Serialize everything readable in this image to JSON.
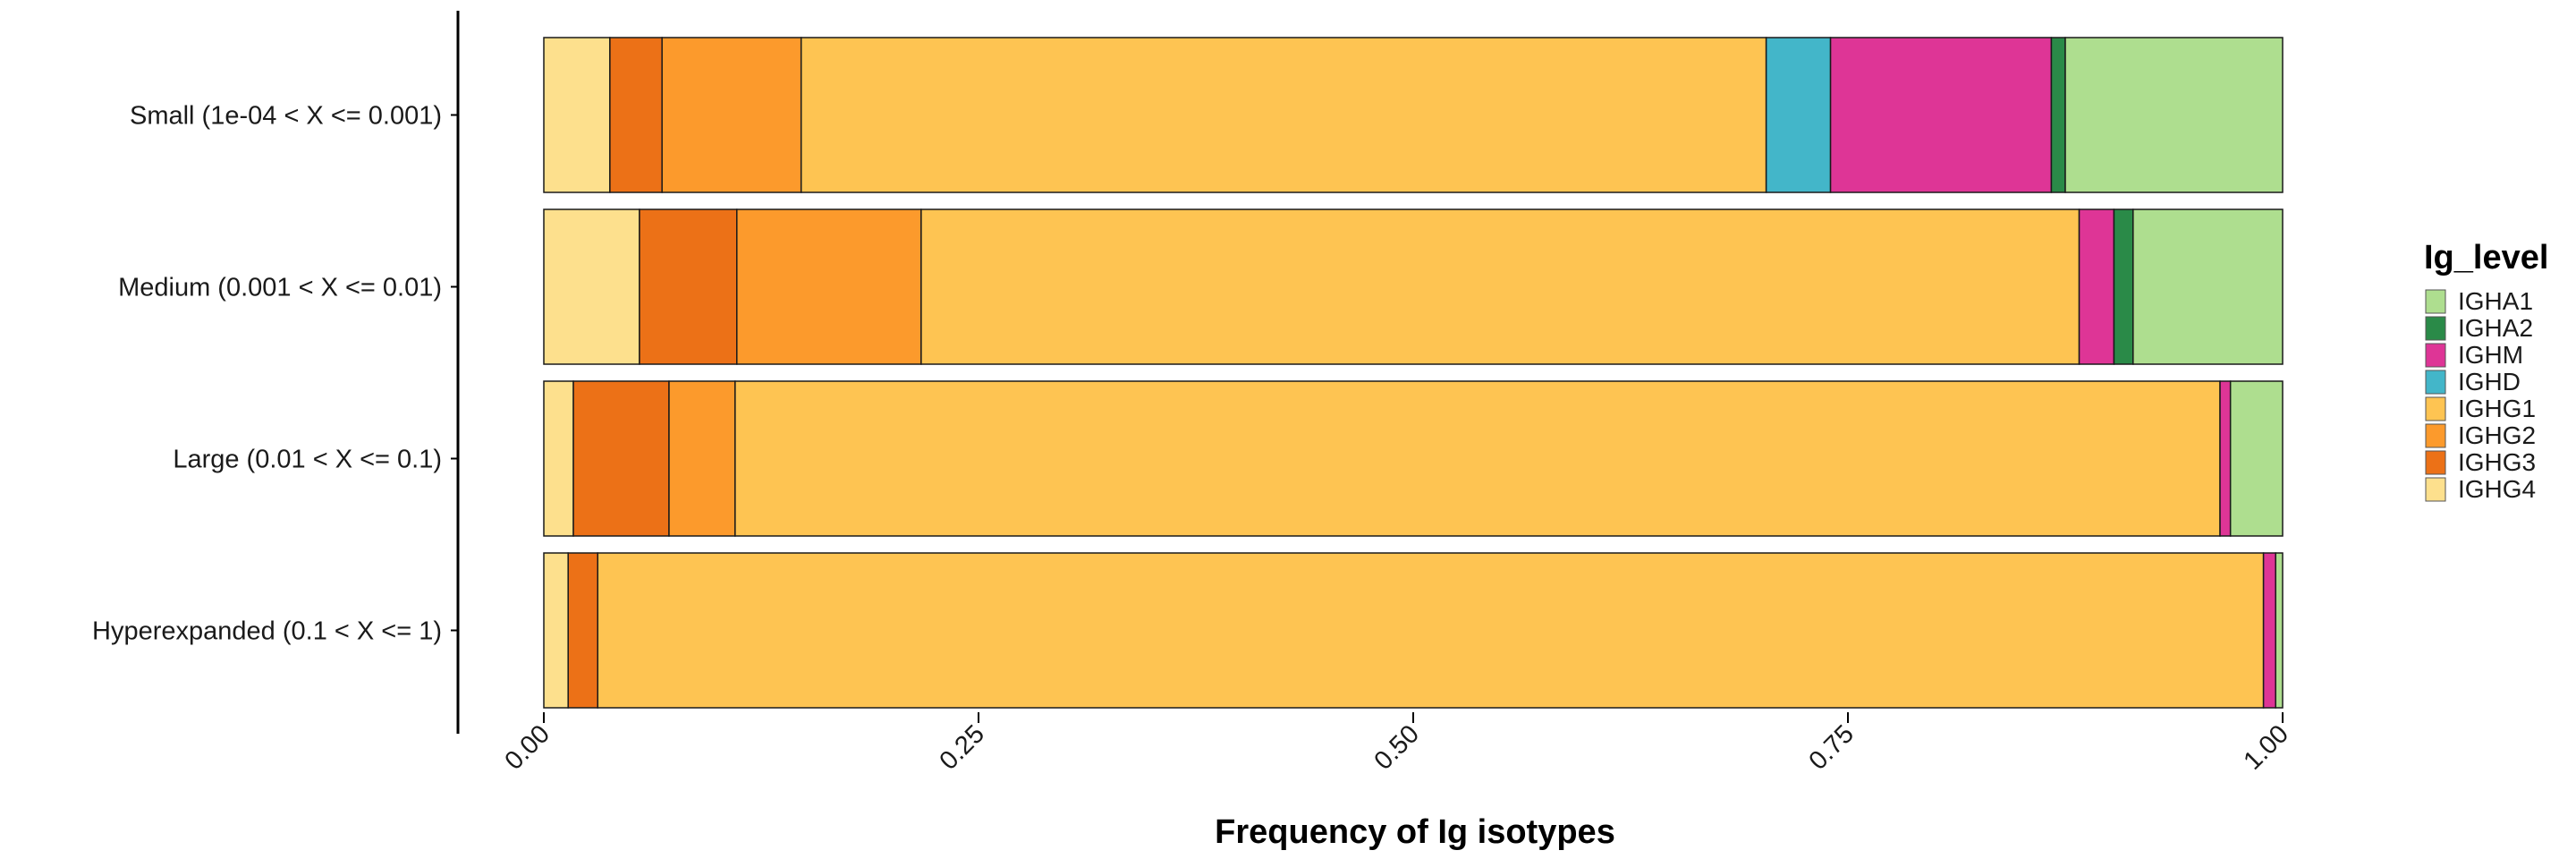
{
  "chart_data": {
    "type": "bar",
    "orientation": "horizontal",
    "stacked": true,
    "normalized": true,
    "categories": [
      "Small (1e-04 < X <= 0.001)",
      "Medium (0.001 < X <= 0.01)",
      "Large (0.01 < X <= 0.1)",
      "Hyperexpanded (0.1 < X <= 1)"
    ],
    "series": [
      {
        "name": "IGHG4",
        "color": "#FDE08D",
        "values": [
          0.038,
          0.055,
          0.017,
          0.014
        ]
      },
      {
        "name": "IGHG3",
        "color": "#EC7117",
        "values": [
          0.03,
          0.056,
          0.055,
          0.017
        ]
      },
      {
        "name": "IGHG2",
        "color": "#FC9A2C",
        "values": [
          0.08,
          0.106,
          0.038,
          0.0
        ]
      },
      {
        "name": "IGHG1",
        "color": "#FEC452",
        "values": [
          0.555,
          0.666,
          0.854,
          0.958
        ]
      },
      {
        "name": "IGHD",
        "color": "#43B6C9",
        "values": [
          0.037,
          0.0,
          0.0,
          0.0
        ]
      },
      {
        "name": "IGHM",
        "color": "#DE3596",
        "values": [
          0.127,
          0.02,
          0.006,
          0.007
        ]
      },
      {
        "name": "IGHA2",
        "color": "#2A8A48",
        "values": [
          0.008,
          0.011,
          0.0,
          0.0
        ]
      },
      {
        "name": "IGHA1",
        "color": "#AEDE8F",
        "values": [
          0.125,
          0.086,
          0.03,
          0.004
        ]
      }
    ],
    "x_ticks": [
      "0.00",
      "0.25",
      "0.50",
      "0.75",
      "1.00"
    ],
    "xlim": [
      0,
      1
    ],
    "xlabel": "Frequency of Ig isotypes",
    "ylabel": "",
    "grid": false,
    "legend": {
      "title": "Ig_level",
      "placement": "right",
      "order": [
        "IGHA1",
        "IGHA2",
        "IGHM",
        "IGHD",
        "IGHG1",
        "IGHG2",
        "IGHG3",
        "IGHG4"
      ]
    }
  }
}
